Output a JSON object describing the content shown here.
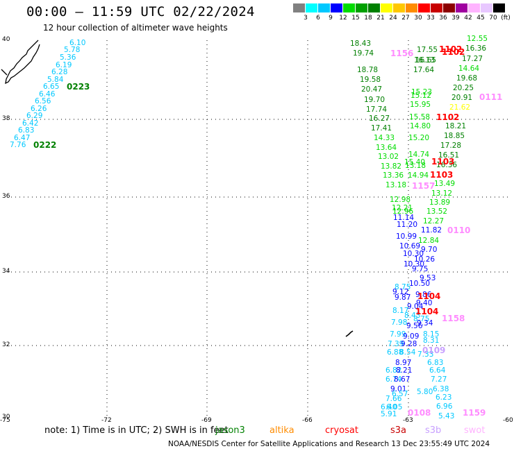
{
  "title": "00:00 – 11:59 UTC 02/22/2024",
  "subtitle": "12 hour collection of altimeter wave heights",
  "colorbar": {
    "unit": "(ft)",
    "ticks": [
      "3",
      "6",
      "9",
      "12",
      "15",
      "18",
      "21",
      "24",
      "27",
      "30",
      "33",
      "36",
      "39",
      "42",
      "45",
      "70"
    ],
    "colors": [
      "#808080",
      "#00ffff",
      "#00c8ff",
      "#0000ff",
      "#00dc00",
      "#00a000",
      "#008000",
      "#ffff00",
      "#ffc800",
      "#ff8c00",
      "#ff0000",
      "#c80000",
      "#8c0000",
      "#a000a0",
      "#ffb4ff",
      "#e8c8ff",
      "#000000"
    ]
  },
  "axes": {
    "lon_labels": [
      "-75",
      "-72",
      "-69",
      "-66",
      "-63",
      "-60"
    ],
    "lat_labels": [
      "40",
      "38",
      "36",
      "34",
      "32",
      "30"
    ]
  },
  "legend": {
    "note": "note:  1) Time is in UTC;  2) SWH is in feet",
    "satellites": [
      {
        "name": "jason3",
        "color": "#008000"
      },
      {
        "name": "altika",
        "color": "#ff8c00"
      },
      {
        "name": "cryosat",
        "color": "#ff0000"
      },
      {
        "name": "s3a",
        "color": "#c80000"
      },
      {
        "name": "s3b",
        "color": "#c8a0ff"
      },
      {
        "name": "swot",
        "color": "#ffb4ff"
      }
    ]
  },
  "credit": "NOAA/NESDIS Center for Satellite Applications and Research    13 Dec 23:55:49 UTC 2024",
  "time_labels": [
    {
      "text": "0223",
      "color": "#008000"
    },
    {
      "text": "0222",
      "color": "#008000"
    },
    {
      "text": "1156",
      "color": "#ff8cff"
    },
    {
      "text": "1102",
      "color": "#ff0000"
    },
    {
      "text": "1102",
      "color": "#ff0000"
    },
    {
      "text": "0111",
      "color": "#ff8cff"
    },
    {
      "text": "1102",
      "color": "#ff0000"
    },
    {
      "text": "1103",
      "color": "#ff0000"
    },
    {
      "text": "1103",
      "color": "#ff0000"
    },
    {
      "text": "1157",
      "color": "#ff8cff"
    },
    {
      "text": "0110",
      "color": "#ff8cff"
    },
    {
      "text": "1104",
      "color": "#ff0000"
    },
    {
      "text": "1104",
      "color": "#ff0000"
    },
    {
      "text": "1158",
      "color": "#ff8cff"
    },
    {
      "text": "0109",
      "color": "#c8a0ff"
    },
    {
      "text": "0108",
      "color": "#ff8cff"
    },
    {
      "text": "1159",
      "color": "#ff8cff"
    }
  ],
  "wave_labels": [
    {
      "text": "6.10",
      "color": "#00c8ff"
    },
    {
      "text": "5.78",
      "color": "#00c8ff"
    },
    {
      "text": "5.36",
      "color": "#00c8ff"
    },
    {
      "text": "6.19",
      "color": "#00c8ff"
    },
    {
      "text": "6.28",
      "color": "#00c8ff"
    },
    {
      "text": "5.84",
      "color": "#00c8ff"
    },
    {
      "text": "6.65",
      "color": "#00c8ff"
    },
    {
      "text": "6.46",
      "color": "#00c8ff"
    },
    {
      "text": "6.56",
      "color": "#00c8ff"
    },
    {
      "text": "6.26",
      "color": "#00c8ff"
    },
    {
      "text": "6.29",
      "color": "#00c8ff"
    },
    {
      "text": "6.42",
      "color": "#00c8ff"
    },
    {
      "text": "6.83",
      "color": "#00c8ff"
    },
    {
      "text": "6.47",
      "color": "#00c8ff"
    },
    {
      "text": "7.76",
      "color": "#00c8ff"
    },
    {
      "text": "18.43",
      "color": "#008000"
    },
    {
      "text": "19.74",
      "color": "#008000"
    },
    {
      "text": "18.78",
      "color": "#008000"
    },
    {
      "text": "19.58",
      "color": "#008000"
    },
    {
      "text": "20.47",
      "color": "#008000"
    },
    {
      "text": "19.70",
      "color": "#008000"
    },
    {
      "text": "17.74",
      "color": "#008000"
    },
    {
      "text": "16.27",
      "color": "#008000"
    },
    {
      "text": "17.41",
      "color": "#008000"
    },
    {
      "text": "14.33",
      "color": "#00dc00"
    },
    {
      "text": "13.64",
      "color": "#00dc00"
    },
    {
      "text": "13.02",
      "color": "#00dc00"
    },
    {
      "text": "13.82",
      "color": "#00dc00"
    },
    {
      "text": "13.36",
      "color": "#00dc00"
    },
    {
      "text": "13.18",
      "color": "#00dc00"
    },
    {
      "text": "12.55",
      "color": "#00dc00"
    },
    {
      "text": "16.36",
      "color": "#008000"
    },
    {
      "text": "17.27",
      "color": "#008000"
    },
    {
      "text": "14.64",
      "color": "#00dc00"
    },
    {
      "text": "19.68",
      "color": "#008000"
    },
    {
      "text": "20.25",
      "color": "#008000"
    },
    {
      "text": "20.91",
      "color": "#008000"
    },
    {
      "text": "21.62",
      "color": "#ffff00"
    },
    {
      "text": "18.21",
      "color": "#008000"
    },
    {
      "text": "18.85",
      "color": "#008000"
    },
    {
      "text": "17.28",
      "color": "#008000"
    },
    {
      "text": "16.51",
      "color": "#008000"
    },
    {
      "text": "16.36",
      "color": "#008000"
    },
    {
      "text": "13.49",
      "color": "#00dc00"
    },
    {
      "text": "13.12",
      "color": "#00dc00"
    },
    {
      "text": "13.89",
      "color": "#00dc00"
    },
    {
      "text": "13.52",
      "color": "#00dc00"
    },
    {
      "text": "12.27",
      "color": "#00dc00"
    },
    {
      "text": "17.55",
      "color": "#008000"
    },
    {
      "text": "16.65",
      "color": "#008000"
    },
    {
      "text": "16.13",
      "color": "#008000"
    },
    {
      "text": "17.64",
      "color": "#008000"
    },
    {
      "text": "15.23",
      "color": "#00dc00"
    },
    {
      "text": "15.12",
      "color": "#00dc00"
    },
    {
      "text": "15.95",
      "color": "#00dc00"
    },
    {
      "text": "15.58",
      "color": "#00dc00"
    },
    {
      "text": "14.80",
      "color": "#00dc00"
    },
    {
      "text": "15.20",
      "color": "#00dc00"
    },
    {
      "text": "14.74",
      "color": "#00dc00"
    },
    {
      "text": "15.40",
      "color": "#00dc00"
    },
    {
      "text": "13.18",
      "color": "#00dc00"
    },
    {
      "text": "14.94",
      "color": "#00dc00"
    },
    {
      "text": "12.98",
      "color": "#00dc00"
    },
    {
      "text": "12.21",
      "color": "#00dc00"
    },
    {
      "text": "12.96",
      "color": "#00dc00"
    },
    {
      "text": "11.14",
      "color": "#0000ff"
    },
    {
      "text": "11.20",
      "color": "#0000ff"
    },
    {
      "text": "11.82",
      "color": "#0000ff"
    },
    {
      "text": "10.99",
      "color": "#0000ff"
    },
    {
      "text": "12.84",
      "color": "#00dc00"
    },
    {
      "text": "10.69",
      "color": "#0000ff"
    },
    {
      "text": "9.70",
      "color": "#0000ff"
    },
    {
      "text": "10.30",
      "color": "#0000ff"
    },
    {
      "text": "10.26",
      "color": "#0000ff"
    },
    {
      "text": "10.30",
      "color": "#0000ff"
    },
    {
      "text": "9.75",
      "color": "#0000ff"
    },
    {
      "text": "9.53",
      "color": "#0000ff"
    },
    {
      "text": "10.50",
      "color": "#0000ff"
    },
    {
      "text": "8.75",
      "color": "#00c8ff"
    },
    {
      "text": "9.12",
      "color": "#0000ff"
    },
    {
      "text": "9.86",
      "color": "#0000ff"
    },
    {
      "text": "9.87",
      "color": "#0000ff"
    },
    {
      "text": "9.40",
      "color": "#0000ff"
    },
    {
      "text": "9.04",
      "color": "#0000ff"
    },
    {
      "text": "8.17",
      "color": "#00c8ff"
    },
    {
      "text": "8.43",
      "color": "#00c8ff"
    },
    {
      "text": "8.75",
      "color": "#00c8ff"
    },
    {
      "text": "7.98",
      "color": "#00c8ff"
    },
    {
      "text": "9.56",
      "color": "#0000ff"
    },
    {
      "text": "9.34",
      "color": "#0000ff"
    },
    {
      "text": "7.99",
      "color": "#00c8ff"
    },
    {
      "text": "9.09",
      "color": "#0000ff"
    },
    {
      "text": "8.15",
      "color": "#00c8ff"
    },
    {
      "text": "7.39",
      "color": "#00c8ff"
    },
    {
      "text": "9.28",
      "color": "#0000ff"
    },
    {
      "text": "8.31",
      "color": "#00c8ff"
    },
    {
      "text": "6.88",
      "color": "#00c8ff"
    },
    {
      "text": "8.54",
      "color": "#00c8ff"
    },
    {
      "text": "7.33",
      "color": "#00c8ff"
    },
    {
      "text": "8.97",
      "color": "#0000ff"
    },
    {
      "text": "6.83",
      "color": "#00c8ff"
    },
    {
      "text": "6.82",
      "color": "#00c8ff"
    },
    {
      "text": "8.21",
      "color": "#0000ff"
    },
    {
      "text": "6.64",
      "color": "#00c8ff"
    },
    {
      "text": "6.74",
      "color": "#00c8ff"
    },
    {
      "text": "8.67",
      "color": "#0000ff"
    },
    {
      "text": "7.27",
      "color": "#00c8ff"
    },
    {
      "text": "9.01",
      "color": "#0000ff"
    },
    {
      "text": "6.38",
      "color": "#00c8ff"
    },
    {
      "text": "6.57",
      "color": "#00c8ff"
    },
    {
      "text": "7.66",
      "color": "#00c8ff"
    },
    {
      "text": "6.23",
      "color": "#00c8ff"
    },
    {
      "text": "6.40",
      "color": "#00c8ff"
    },
    {
      "text": "6.05",
      "color": "#00c8ff"
    },
    {
      "text": "6.96",
      "color": "#00c8ff"
    },
    {
      "text": "5.91",
      "color": "#00c8ff"
    },
    {
      "text": "5.43",
      "color": "#00c8ff"
    },
    {
      "text": "5.80",
      "color": "#00c8ff"
    }
  ]
}
